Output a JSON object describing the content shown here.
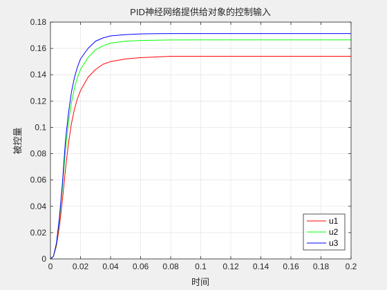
{
  "chart_data": {
    "type": "line",
    "title": "PID神经网络提供给对象的控制输入",
    "xlabel": "时间",
    "ylabel": "被控量",
    "xlim": [
      0,
      0.2
    ],
    "ylim": [
      0,
      0.18
    ],
    "xticks": [
      0,
      0.02,
      0.04,
      0.06,
      0.08,
      0.1,
      0.12,
      0.14,
      0.16,
      0.18,
      0.2
    ],
    "xtick_labels": [
      "0",
      "0.02",
      "0.04",
      "0.06",
      "0.08",
      "0.1",
      "0.12",
      "0.14",
      "0.16",
      "0.18",
      "0.2"
    ],
    "yticks": [
      0,
      0.02,
      0.04,
      0.06,
      0.08,
      0.1,
      0.12,
      0.14,
      0.16,
      0.18
    ],
    "ytick_labels": [
      "0",
      "0.02",
      "0.04",
      "0.06",
      "0.08",
      "0.1",
      "0.12",
      "0.14",
      "0.16",
      "0.18"
    ],
    "grid": true,
    "legend_position": "bottom-right",
    "x": [
      0,
      0.002,
      0.004,
      0.006,
      0.008,
      0.01,
      0.012,
      0.014,
      0.016,
      0.018,
      0.02,
      0.025,
      0.03,
      0.035,
      0.04,
      0.05,
      0.06,
      0.07,
      0.08,
      0.1,
      0.12,
      0.15,
      0.2
    ],
    "series": [
      {
        "name": "u1",
        "color": "#ff0000",
        "values": [
          0,
          0.002,
          0.01,
          0.025,
          0.045,
          0.068,
          0.088,
          0.103,
          0.114,
          0.122,
          0.128,
          0.138,
          0.144,
          0.148,
          0.15,
          0.152,
          0.153,
          0.1535,
          0.154,
          0.154,
          0.154,
          0.154,
          0.154
        ]
      },
      {
        "name": "u2",
        "color": "#00ff00",
        "values": [
          0,
          0.002,
          0.011,
          0.03,
          0.055,
          0.083,
          0.104,
          0.119,
          0.13,
          0.138,
          0.144,
          0.153,
          0.159,
          0.162,
          0.164,
          0.1655,
          0.166,
          0.1662,
          0.1664,
          0.1665,
          0.1665,
          0.1665,
          0.1665
        ]
      },
      {
        "name": "u3",
        "color": "#0000ff",
        "values": [
          0,
          0.002,
          0.012,
          0.032,
          0.058,
          0.09,
          0.111,
          0.127,
          0.138,
          0.146,
          0.152,
          0.16,
          0.1655,
          0.168,
          0.1695,
          0.1705,
          0.171,
          0.1712,
          0.1713,
          0.1713,
          0.1713,
          0.1713,
          0.1713
        ]
      }
    ]
  }
}
